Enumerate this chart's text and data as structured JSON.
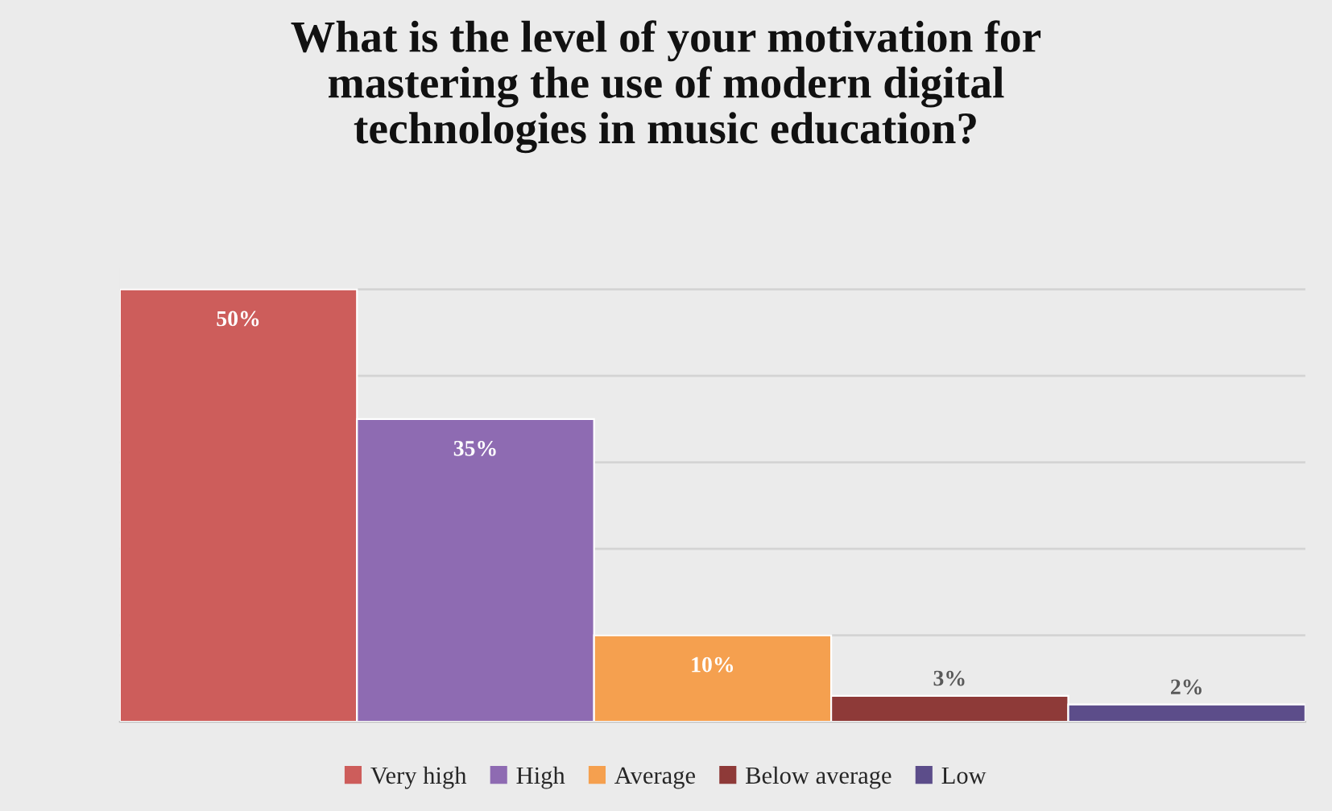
{
  "chart_data": {
    "type": "bar",
    "title": "What is the level of your motivation for mastering the use of modern digital technologies in music education?",
    "categories": [
      null
    ],
    "series": [
      {
        "name": "Very high",
        "color": "#cd5d5b",
        "values": [
          50
        ],
        "value_labels": [
          "50%"
        ]
      },
      {
        "name": "High",
        "color": "#8e6bb2",
        "values": [
          35
        ],
        "value_labels": [
          "35%"
        ]
      },
      {
        "name": "Average",
        "color": "#f5a04f",
        "values": [
          10
        ],
        "value_labels": [
          "10%"
        ]
      },
      {
        "name": "Below average",
        "color": "#8e3a38",
        "values": [
          3
        ],
        "value_labels": [
          "3%"
        ]
      },
      {
        "name": "Low",
        "color": "#5c4d8a",
        "values": [
          2
        ],
        "value_labels": [
          "2%"
        ]
      }
    ],
    "grid": "y",
    "legend": "bottom"
  }
}
